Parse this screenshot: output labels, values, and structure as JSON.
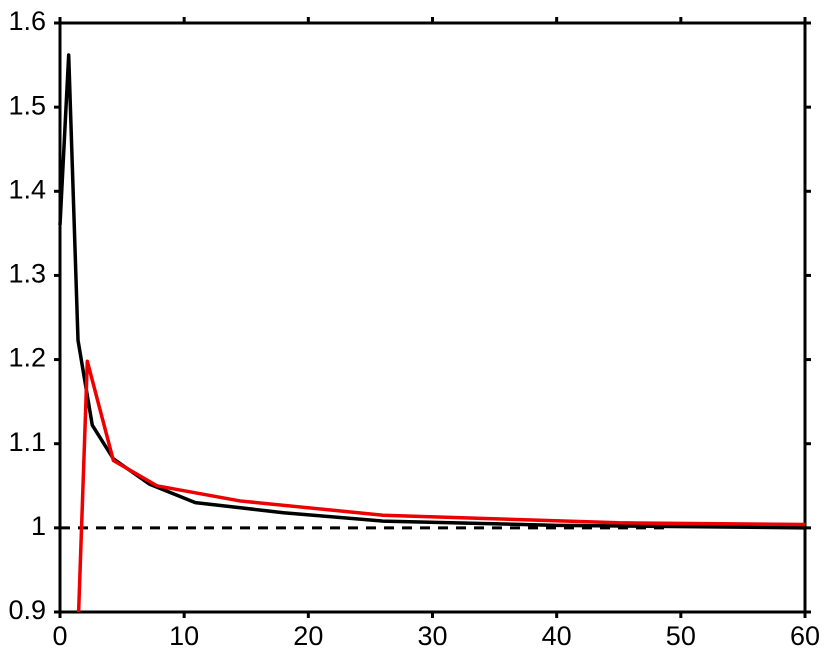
{
  "chart_data": {
    "type": "line",
    "series": [
      {
        "color": "#000000",
        "x": [
          0,
          0.7,
          1.45,
          2.6,
          4.3,
          7.2,
          10.9,
          18,
          26,
          40,
          60
        ],
        "values": [
          1.36,
          1.562,
          1.223,
          1.122,
          1.082,
          1.052,
          1.03,
          1.018,
          1.008,
          1.003,
          1.0
        ]
      },
      {
        "color": "#ee0000",
        "x": [
          1.5,
          2.2,
          4.3,
          7.8,
          14.5,
          26,
          45,
          60
        ],
        "values": [
          0.9,
          1.198,
          1.08,
          1.05,
          1.032,
          1.015,
          1.006,
          1.004
        ]
      }
    ],
    "reference_line": {
      "y": 1,
      "x": [
        0,
        49
      ],
      "color": "#000000",
      "dashed": true
    },
    "xlim": [
      0,
      60
    ],
    "xticks": [
      0,
      10,
      20,
      30,
      40,
      50,
      60
    ],
    "ylim": [
      0.9,
      1.6
    ],
    "yticks": [
      0.9,
      1,
      1.1,
      1.2,
      1.3,
      1.4,
      1.5,
      1.6
    ],
    "grid": false
  }
}
